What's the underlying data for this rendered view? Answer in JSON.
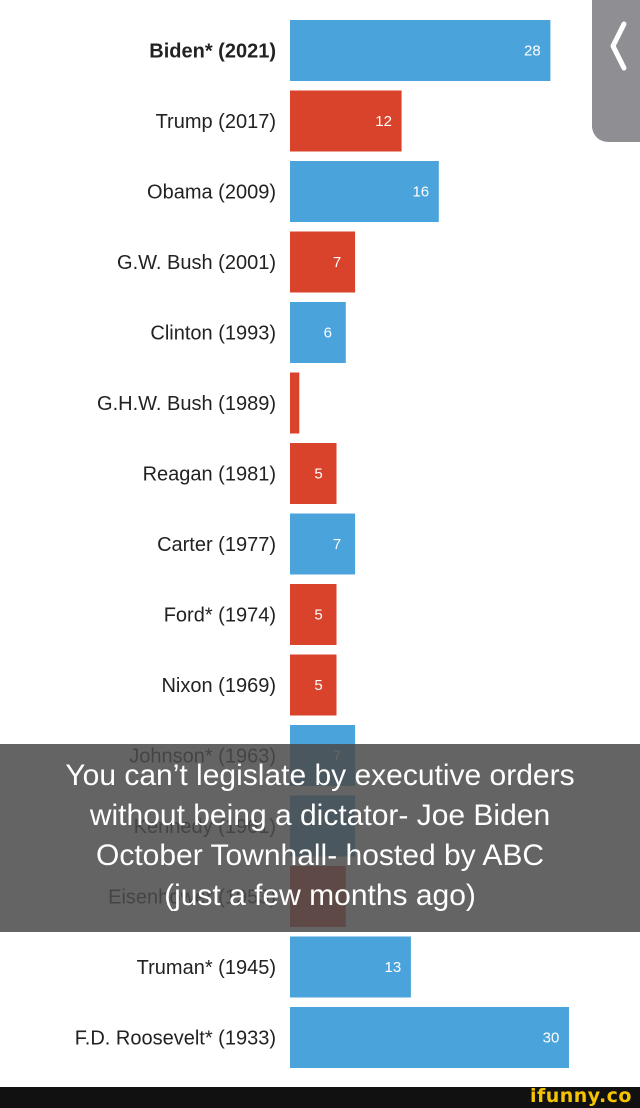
{
  "chart_data": {
    "type": "bar",
    "orientation": "horizontal",
    "categories": [
      {
        "label": "Biden* (2021)",
        "bold": true
      },
      {
        "label": "Trump (2017)"
      },
      {
        "label": "Obama (2009)"
      },
      {
        "label": "G.W. Bush (2001)"
      },
      {
        "label": "Clinton (1993)"
      },
      {
        "label": "G.H.W. Bush (1989)"
      },
      {
        "label": "Reagan (1981)"
      },
      {
        "label": "Carter (1977)"
      },
      {
        "label": "Ford* (1974)"
      },
      {
        "label": "Nixon (1969)"
      },
      {
        "label": "Johnson* (1963)"
      },
      {
        "label": "Kennedy (1961)"
      },
      {
        "label": "Eisenhower (1953)"
      },
      {
        "label": "Truman* (1945)"
      },
      {
        "label": "F.D. Roosevelt* (1933)"
      }
    ],
    "values": [
      28,
      12,
      16,
      7,
      6,
      1,
      5,
      7,
      5,
      5,
      7,
      7,
      6,
      13,
      30
    ],
    "value_labels": [
      "28",
      "12",
      "16",
      "7",
      "6",
      "",
      "5",
      "7",
      "5",
      "5",
      "7",
      "",
      "",
      "13",
      "30"
    ],
    "party": [
      "D",
      "R",
      "D",
      "R",
      "D",
      "R",
      "R",
      "D",
      "R",
      "R",
      "D",
      "D",
      "R",
      "D",
      "D"
    ],
    "party_colors": {
      "D": "#4ba3dc",
      "R": "#d9432b"
    },
    "xlim": [
      0,
      30
    ],
    "title": "",
    "xlabel": "",
    "ylabel": ""
  },
  "caption": {
    "line1": "You can’t legislate by executive orders",
    "line2": "without being a dictator- Joe Biden",
    "line3": "October Townhall- hosted by ABC",
    "line4": "(just a few months ago)"
  },
  "nav": {
    "back_icon": "chevron-left-icon"
  },
  "watermark": {
    "text": "ifunny.co"
  }
}
